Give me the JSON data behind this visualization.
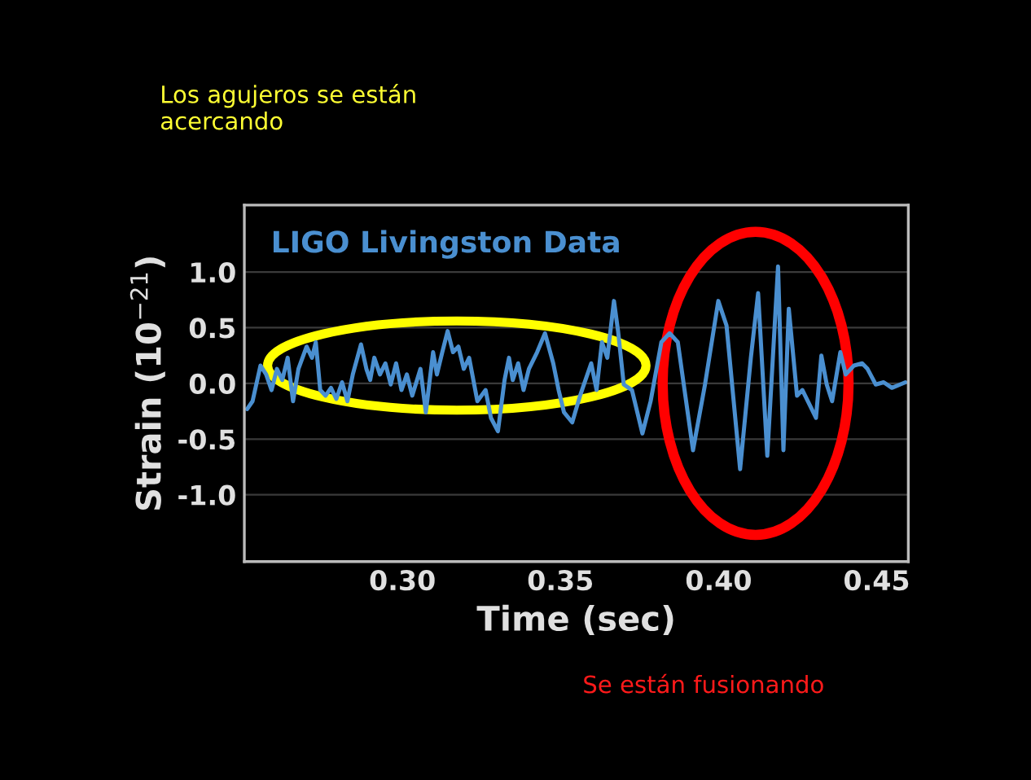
{
  "chart_data": {
    "type": "line",
    "xlabel": "Time (sec)",
    "ylabel": "Strain (10$^{−21}$)",
    "annotations": [
      "LIGO Livingston Data",
      "Los agujeros se están acercando",
      "Se están fusionando"
    ],
    "xlim": [
      0.25,
      0.46
    ],
    "xticks": [
      {
        "value": 0.3,
        "label": "0.30"
      },
      0.35,
      {
        "value": 0.4,
        "label": "0.40"
      },
      0.45
    ],
    "ylim": [
      -1.6,
      1.6
    ],
    "yticks": [
      {
        "value": 1.0,
        "label": "1.0"
      },
      0.5,
      {
        "value": 0.0,
        "label": "0.0"
      },
      -0.5,
      {
        "value": -1.0,
        "label": "-1.0"
      }
    ],
    "grid": "y",
    "series": [
      {
        "color": "#4a8fd0",
        "x": [
          0.2509,
          0.2526,
          0.2551,
          0.2569,
          0.2586,
          0.2603,
          0.262,
          0.2637,
          0.2654,
          0.2671,
          0.2697,
          0.2714,
          0.2726,
          0.274,
          0.2757,
          0.2774,
          0.2791,
          0.2809,
          0.2826,
          0.2843,
          0.2869,
          0.2886,
          0.2898,
          0.2911,
          0.2929,
          0.2946,
          0.2963,
          0.298,
          0.2997,
          0.3014,
          0.3031,
          0.3057,
          0.3074,
          0.3097,
          0.3109,
          0.3126,
          0.3143,
          0.316,
          0.3177,
          0.3194,
          0.3211,
          0.3237,
          0.3263,
          0.328,
          0.3302,
          0.3323,
          0.3337,
          0.3349,
          0.3366,
          0.3383,
          0.34,
          0.3426,
          0.3451,
          0.3477,
          0.3494,
          0.3511,
          0.3537,
          0.3562,
          0.3597,
          0.3614,
          0.3631,
          0.3648,
          0.3669,
          0.3682,
          0.37,
          0.3726,
          0.3759,
          0.3785,
          0.3819,
          0.3845,
          0.3871,
          0.3919,
          0.3957,
          0.3999,
          0.4025,
          0.4068,
          0.4102,
          0.4125,
          0.4154,
          0.4188,
          0.4205,
          0.4222,
          0.4248,
          0.4265,
          0.4291,
          0.4308,
          0.4325,
          0.4342,
          0.4359,
          0.4385,
          0.4402,
          0.4428,
          0.4454,
          0.4471,
          0.4497,
          0.4522,
          0.4548,
          0.4574,
          0.4591
        ],
        "values": [
          -0.23,
          -0.16,
          0.16,
          0.08,
          -0.06,
          0.13,
          0.03,
          0.23,
          -0.16,
          0.13,
          0.33,
          0.23,
          0.37,
          -0.06,
          -0.11,
          -0.04,
          -0.14,
          0.01,
          -0.16,
          0.08,
          0.35,
          0.13,
          0.03,
          0.23,
          0.08,
          0.18,
          -0.01,
          0.18,
          -0.06,
          0.08,
          -0.11,
          0.13,
          -0.26,
          0.28,
          0.08,
          0.28,
          0.47,
          0.28,
          0.33,
          0.13,
          0.23,
          -0.16,
          -0.06,
          -0.31,
          -0.43,
          0.03,
          0.23,
          0.03,
          0.18,
          -0.06,
          0.13,
          0.28,
          0.45,
          0.18,
          -0.06,
          -0.26,
          -0.35,
          -0.11,
          0.18,
          -0.06,
          0.37,
          0.23,
          0.74,
          0.47,
          -0.01,
          -0.06,
          -0.45,
          -0.16,
          0.37,
          0.45,
          0.37,
          -0.6,
          -0.01,
          0.74,
          0.52,
          -0.77,
          0.23,
          0.81,
          -0.65,
          1.05,
          -0.6,
          0.67,
          -0.11,
          -0.06,
          -0.21,
          -0.31,
          0.25,
          -0.01,
          -0.16,
          0.28,
          0.08,
          0.16,
          0.18,
          0.13,
          -0.01,
          0.01,
          -0.04,
          -0.01,
          0.01
        ]
      }
    ]
  }
}
